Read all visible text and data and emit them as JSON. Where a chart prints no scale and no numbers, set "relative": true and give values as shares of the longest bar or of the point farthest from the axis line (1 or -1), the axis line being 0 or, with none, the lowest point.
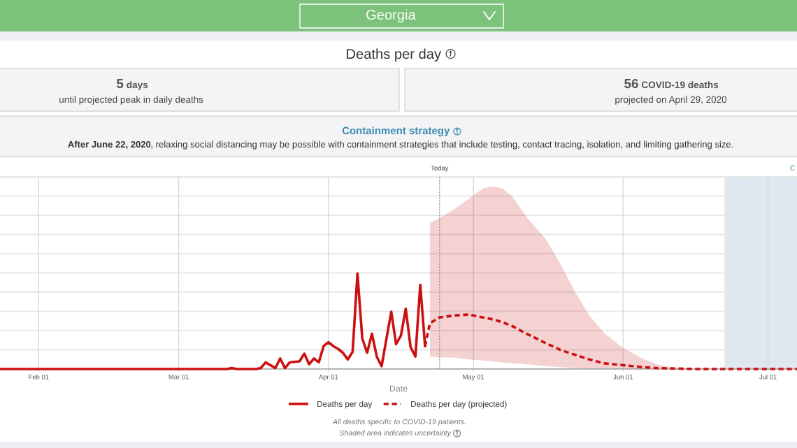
{
  "chart_data": {
    "type": "line",
    "title": "Deaths per day",
    "xlabel": "Date",
    "annotations": [
      "Georgia",
      "5",
      "days",
      "until projected peak in daily deaths",
      "56",
      "COVID-19 deaths",
      "projected on April 29, 2020",
      "Containment strategy",
      "After June 22, 2020",
      ", relaxing social distancing may be possible with containment strategies that include testing, contact tracing, isolation, and limiting gathering size.",
      "All deaths specific to COVID-19 patients.",
      "Shaded area indicates uncertainty"
    ],
    "relative": true,
    "xlim": [
      "2020-01-24",
      "2020-07-07"
    ],
    "xticks": [
      {
        "value": "2020-02-01",
        "label": "Feb 01"
      },
      {
        "value": "2020-03-01",
        "label": "Mar 01"
      },
      {
        "value": "2020-04-01",
        "label": "Apr 01"
      },
      {
        "value": "2020-05-01",
        "label": "May 01"
      },
      {
        "value": "2020-06-01",
        "label": "Jun 01"
      },
      {
        "value": "2020-07-01",
        "label": "Jul 01"
      }
    ],
    "series": [
      {
        "name": "Deaths per day",
        "color": "#cc1010",
        "line_style": "solid",
        "x": [
          "2020-01-24",
          "2020-03-11",
          "2020-03-12",
          "2020-03-13",
          "2020-03-17",
          "2020-03-18",
          "2020-03-19",
          "2020-03-21",
          "2020-03-22",
          "2020-03-23",
          "2020-03-24",
          "2020-03-26",
          "2020-03-27",
          "2020-03-28",
          "2020-03-29",
          "2020-03-30",
          "2020-03-31",
          "2020-04-01",
          "2020-04-02",
          "2020-04-03",
          "2020-04-04",
          "2020-04-05",
          "2020-04-06",
          "2020-04-07",
          "2020-04-08",
          "2020-04-09",
          "2020-04-10",
          "2020-04-11",
          "2020-04-12",
          "2020-04-14",
          "2020-04-15",
          "2020-04-16",
          "2020-04-17",
          "2020-04-18",
          "2020-04-19",
          "2020-04-20",
          "2020-04-21"
        ],
        "values": [
          0,
          0,
          0.01,
          0,
          0,
          0.01,
          0.07,
          0.01,
          0.11,
          0.01,
          0.07,
          0.08,
          0.16,
          0.05,
          0.11,
          0.07,
          0.24,
          0.28,
          0.24,
          0.21,
          0.17,
          0.1,
          0.18,
          1,
          0.32,
          0.17,
          0.37,
          0.13,
          0.03,
          0.6,
          0.26,
          0.35,
          0.63,
          0.23,
          0.13,
          0.88,
          0.24
        ]
      },
      {
        "name": "Deaths per day (projected)",
        "color": "#cc1010",
        "line_style": "dashed",
        "x": [
          "2020-04-21",
          "2020-04-22",
          "2020-04-24",
          "2020-04-27",
          "2020-04-30",
          "2020-05-03",
          "2020-05-05",
          "2020-05-07",
          "2020-05-09",
          "2020-05-12",
          "2020-05-16",
          "2020-05-19",
          "2020-05-22",
          "2020-05-25",
          "2020-05-28",
          "2020-06-01",
          "2020-06-05",
          "2020-06-08",
          "2020-06-12",
          "2020-06-16",
          "2020-06-22",
          "2020-07-07"
        ],
        "values": [
          0.24,
          0.48,
          0.54,
          0.56,
          0.57,
          0.54,
          0.52,
          0.49,
          0.45,
          0.37,
          0.27,
          0.2,
          0.15,
          0.1,
          0.06,
          0.04,
          0.02,
          0.01,
          0.005,
          0,
          0,
          0
        ],
        "lower": [
          null,
          0.13,
          0.12,
          0.12,
          0.1,
          0.09,
          0.08,
          0.07,
          0.06,
          0.05,
          0.03,
          0.02,
          0.01,
          0.008,
          0.006,
          0.004,
          0.002,
          0,
          0,
          0,
          0,
          0
        ],
        "upper": [
          null,
          1.53,
          1.58,
          1.67,
          1.78,
          1.89,
          1.91,
          1.89,
          1.81,
          1.59,
          1.36,
          1.1,
          0.81,
          0.56,
          0.38,
          0.22,
          0.11,
          0.05,
          0.01,
          0,
          0,
          0
        ]
      }
    ],
    "ref_lines": [
      {
        "axis": "x",
        "value": "2020-04-24",
        "label": "Today",
        "color": "#999999",
        "line_style": "dashed"
      }
    ],
    "bands": [
      {
        "axis": "x",
        "from": "2020-06-22",
        "to": "2020-07-07",
        "label": "C",
        "color": "#dfe8ef"
      }
    ],
    "grid": true,
    "legend": "bottom",
    "tick_labels": "x"
  }
}
